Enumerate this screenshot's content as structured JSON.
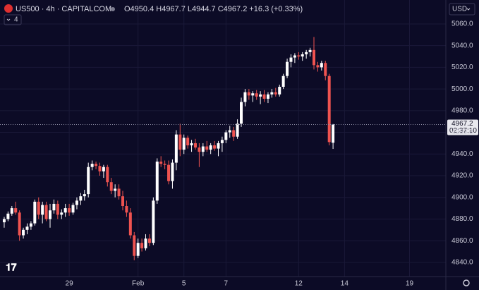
{
  "chart_data": {
    "type": "candlestick",
    "title": "US500 · 4h · CAPITALCOM",
    "subtitle": "O4950.4 H4967.7 L4944.7 C4967.2 +16.3 (+0.33%)",
    "currency": "USD",
    "indicators": 4,
    "last_price": 4967.2,
    "countdown": "02:37:10",
    "up_color": "#ffffff",
    "down_color": "#ef5350",
    "grid": true,
    "xlim": [
      -1.1,
      115.5
    ],
    "xticks": [
      {
        "value": 17,
        "label": "29"
      },
      {
        "value": 35,
        "label": "Feb"
      },
      {
        "value": 47,
        "label": "5"
      },
      {
        "value": 58,
        "label": "7"
      },
      {
        "value": 77,
        "label": "12"
      },
      {
        "value": 89,
        "label": "14"
      },
      {
        "value": 106,
        "label": "19"
      }
    ],
    "ylim": [
      4826.9,
      5082.1
    ],
    "yticks": [
      {
        "value": 4840,
        "label": "4840.0"
      },
      {
        "value": 4860,
        "label": "4860.0"
      },
      {
        "value": 4880,
        "label": "4880.0"
      },
      {
        "value": 4900,
        "label": "4900.0"
      },
      {
        "value": 4920,
        "label": "4920.0"
      },
      {
        "value": 4940,
        "label": "4940.0"
      },
      {
        "value": 4960,
        "label": "4960.0"
      },
      {
        "value": 4980,
        "label": "4980.0"
      },
      {
        "value": 5000,
        "label": "5000.0"
      },
      {
        "value": 5020,
        "label": "5020.0"
      },
      {
        "value": 5040,
        "label": "5040.0"
      },
      {
        "value": 5060,
        "label": "5060.0"
      }
    ],
    "open": [
      4877,
      4880,
      4885,
      4890,
      4886,
      4865,
      4870,
      4873,
      4876,
      4896,
      4884,
      4893,
      4880,
      4888,
      4894,
      4884,
      4886,
      4890,
      4886,
      4893,
      4897,
      4901,
      4903,
      4928,
      4931,
      4929,
      4924,
      4928,
      4914,
      4906,
      4908,
      4901,
      4892,
      4886,
      4865,
      4846,
      4858,
      4853,
      4862,
      4858,
      4897,
      4933,
      4931,
      4930,
      4915,
      4932,
      4958,
      4944,
      4955,
      4948,
      4950,
      4946,
      4942,
      4947,
      4944,
      4948,
      4945,
      4950,
      4953,
      4960,
      4962,
      4956,
      4968,
      4988,
      4997,
      4994,
      4996,
      4993,
      4995,
      4991,
      4995,
      4997,
      4995,
      5002,
      5012,
      5025,
      5029,
      5031,
      5030,
      5032,
      5034,
      5036,
      5022,
      5020,
      5024,
      5012,
      4950.4
    ],
    "high": [
      4882,
      4887,
      4892,
      4896,
      4888,
      4872,
      4876,
      4878,
      4898,
      4900,
      4896,
      4896,
      4894,
      4898,
      4897,
      4889,
      4894,
      4894,
      4895,
      4900,
      4904,
      4907,
      4932,
      4934,
      4933,
      4932,
      4930,
      4930,
      4918,
      4912,
      4912,
      4906,
      4897,
      4890,
      4868,
      4862,
      4862,
      4866,
      4866,
      4900,
      4936,
      4938,
      4934,
      4934,
      4935,
      4962,
      4968,
      4958,
      4957,
      4953,
      4954,
      4950,
      4950,
      4952,
      4950,
      4952,
      4952,
      4956,
      4962,
      4966,
      4965,
      4972,
      4992,
      5000,
      5000,
      4998,
      4999,
      4998,
      4999,
      4997,
      5000,
      5001,
      5004,
      5014,
      5028,
      5032,
      5033,
      5034,
      5034,
      5036,
      5038,
      5048,
      5025,
      5026,
      5026,
      5014,
      4967.7
    ],
    "low": [
      4872,
      4878,
      4883,
      4884,
      4860,
      4862,
      4866,
      4870,
      4874,
      4880,
      4876,
      4878,
      4872,
      4885,
      4880,
      4880,
      4882,
      4883,
      4884,
      4889,
      4893,
      4897,
      4900,
      4925,
      4926,
      4920,
      4918,
      4910,
      4903,
      4900,
      4898,
      4888,
      4882,
      4862,
      4842,
      4844,
      4850,
      4851,
      4855,
      4856,
      4894,
      4928,
      4926,
      4912,
      4908,
      4925,
      4938,
      4940,
      4945,
      4942,
      4944,
      4928,
      4938,
      4942,
      4940,
      4943,
      4938,
      4942,
      4950,
      4955,
      4952,
      4954,
      4965,
      4984,
      4990,
      4988,
      4990,
      4986,
      4988,
      4987,
      4992,
      4993,
      4993,
      5000,
      5010,
      5020,
      5024,
      5027,
      5026,
      5028,
      5030,
      5018,
      5016,
      5017,
      5008,
      4948,
      4944.7
    ],
    "close": [
      4880,
      4885,
      4890,
      4886,
      4865,
      4870,
      4873,
      4876,
      4896,
      4884,
      4893,
      4880,
      4888,
      4894,
      4884,
      4886,
      4890,
      4886,
      4893,
      4897,
      4901,
      4903,
      4928,
      4931,
      4929,
      4924,
      4928,
      4914,
      4906,
      4908,
      4901,
      4892,
      4886,
      4865,
      4846,
      4858,
      4853,
      4862,
      4858,
      4897,
      4933,
      4931,
      4930,
      4915,
      4932,
      4958,
      4944,
      4955,
      4948,
      4950,
      4946,
      4942,
      4947,
      4944,
      4948,
      4945,
      4950,
      4953,
      4960,
      4962,
      4956,
      4968,
      4988,
      4997,
      4994,
      4996,
      4993,
      4995,
      4991,
      4995,
      4997,
      4995,
      5002,
      5012,
      5025,
      5029,
      5031,
      5030,
      5032,
      5034,
      5036,
      5022,
      5020,
      5024,
      5012,
      4951,
      4967.2
    ]
  }
}
